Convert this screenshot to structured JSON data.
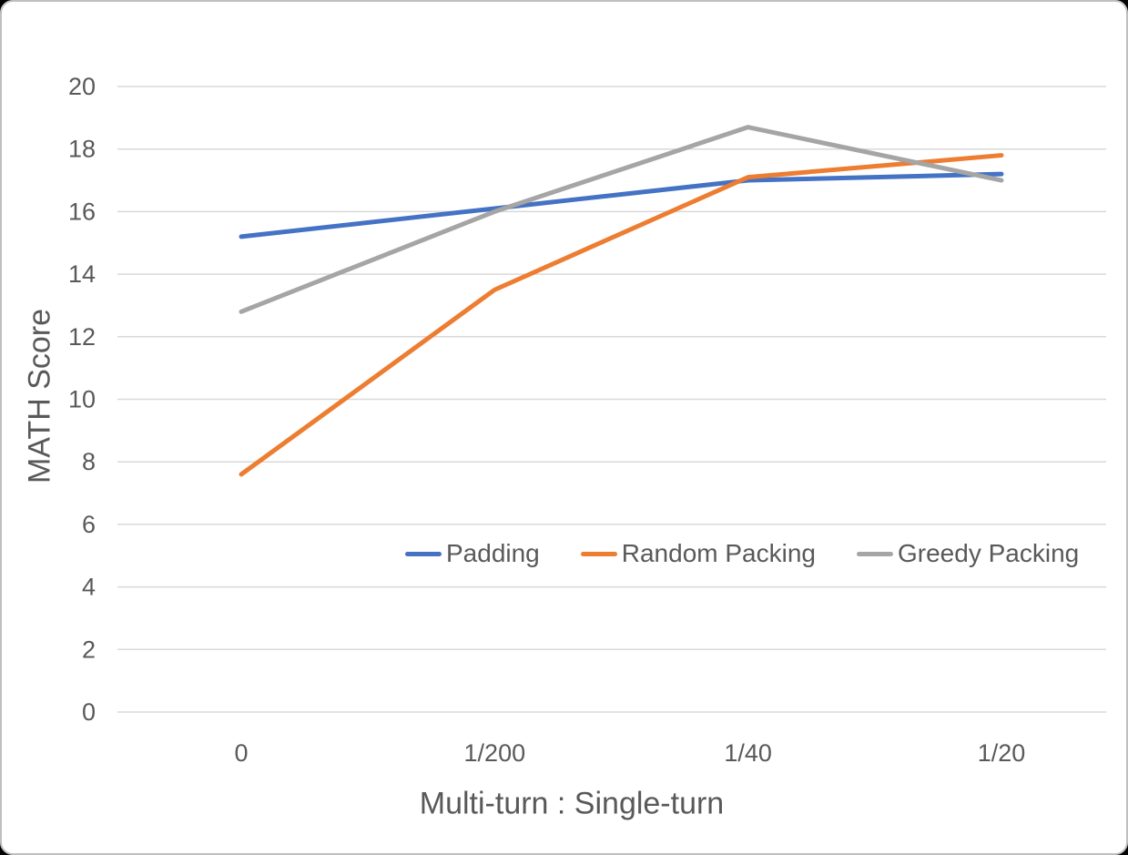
{
  "frame": {
    "background": "#FFFFFF",
    "border_color": "#BFBFBF",
    "outside_color": "#000000"
  },
  "chart_data": {
    "type": "line",
    "title": "",
    "categories": [
      "0",
      "1/200",
      "1/40",
      "1/20"
    ],
    "series": [
      {
        "name": "Padding",
        "color": "#4472C4",
        "values": [
          15.2,
          16.1,
          17.0,
          17.2
        ]
      },
      {
        "name": "Random Packing",
        "color": "#ED7D31",
        "values": [
          7.6,
          13.5,
          17.1,
          17.8
        ]
      },
      {
        "name": "Greedy Packing",
        "color": "#A5A5A5",
        "values": [
          12.8,
          16.0,
          18.7,
          17.0
        ]
      }
    ],
    "xlabel": "Multi-turn : Single-turn",
    "ylabel": "MATH Score",
    "ylim": [
      0,
      20
    ],
    "ytick_step": 2,
    "grid": true,
    "gridline_color": "#D9D9D9",
    "text_color": "#595959",
    "legend_position": "inside-plot-center"
  }
}
